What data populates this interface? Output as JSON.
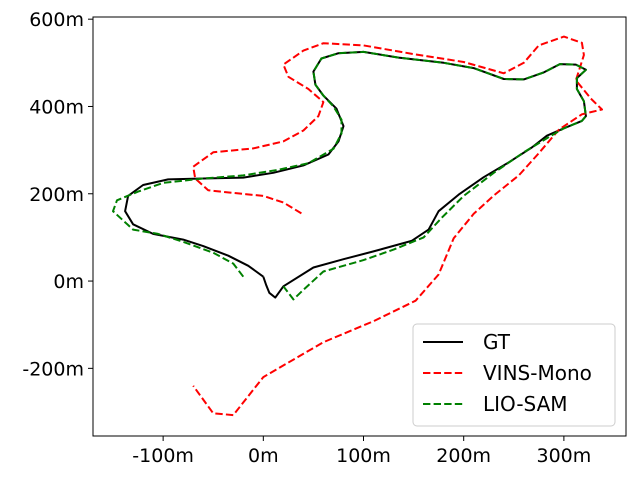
{
  "chart_data": {
    "type": "line",
    "title": "",
    "xlabel": "",
    "ylabel": "",
    "xlim": [
      -170,
      362
    ],
    "ylim": [
      -355,
      605
    ],
    "x_ticks": [
      {
        "value": -100,
        "label": "-100m"
      },
      {
        "value": 0,
        "label": "0m"
      },
      {
        "value": 100,
        "label": "100m"
      },
      {
        "value": 200,
        "label": "200m"
      },
      {
        "value": 300,
        "label": "300m"
      }
    ],
    "y_ticks": [
      {
        "value": -200,
        "label": "-200m"
      },
      {
        "value": 0,
        "label": "0m"
      },
      {
        "value": 200,
        "label": "200m"
      },
      {
        "value": 400,
        "label": "400m"
      },
      {
        "value": 600,
        "label": "600m"
      }
    ],
    "grid": false,
    "legend_position": "bottom-right",
    "series": [
      {
        "name": "GT",
        "color": "#000000",
        "style": "solid",
        "points": [
          [
            0,
            10
          ],
          [
            -15,
            35
          ],
          [
            -35,
            58
          ],
          [
            -60,
            80
          ],
          [
            -80,
            95
          ],
          [
            -110,
            108
          ],
          [
            -130,
            130
          ],
          [
            -138,
            160
          ],
          [
            -135,
            195
          ],
          [
            -120,
            220
          ],
          [
            -95,
            233
          ],
          [
            -60,
            235
          ],
          [
            -20,
            237
          ],
          [
            10,
            248
          ],
          [
            40,
            265
          ],
          [
            65,
            290
          ],
          [
            75,
            320
          ],
          [
            80,
            355
          ],
          [
            73,
            395
          ],
          [
            60,
            425
          ],
          [
            52,
            450
          ],
          [
            50,
            480
          ],
          [
            58,
            510
          ],
          [
            75,
            522
          ],
          [
            100,
            525
          ],
          [
            135,
            512
          ],
          [
            180,
            500
          ],
          [
            210,
            488
          ],
          [
            240,
            463
          ],
          [
            260,
            462
          ],
          [
            280,
            478
          ],
          [
            296,
            497
          ],
          [
            312,
            496
          ],
          [
            322,
            484
          ],
          [
            313,
            465
          ],
          [
            313,
            440
          ],
          [
            320,
            412
          ],
          [
            322,
            378
          ],
          [
            318,
            367
          ],
          [
            300,
            350
          ],
          [
            283,
            333
          ],
          [
            268,
            306
          ],
          [
            245,
            272
          ],
          [
            220,
            238
          ],
          [
            195,
            198
          ],
          [
            175,
            160
          ],
          [
            165,
            118
          ],
          [
            148,
            92
          ],
          [
            110,
            68
          ],
          [
            80,
            50
          ],
          [
            50,
            31
          ],
          [
            20,
            -12
          ],
          [
            12,
            -38
          ],
          [
            6,
            -27
          ],
          [
            3,
            -10
          ],
          [
            0,
            10
          ]
        ]
      },
      {
        "name": "VINS-Mono",
        "color": "#ff0000",
        "style": "dashed",
        "points": [
          [
            38,
            155
          ],
          [
            20,
            180
          ],
          [
            0,
            195
          ],
          [
            -30,
            202
          ],
          [
            -55,
            208
          ],
          [
            -68,
            235
          ],
          [
            -70,
            262
          ],
          [
            -50,
            295
          ],
          [
            -10,
            304
          ],
          [
            20,
            320
          ],
          [
            40,
            345
          ],
          [
            55,
            378
          ],
          [
            60,
            410
          ],
          [
            45,
            440
          ],
          [
            25,
            468
          ],
          [
            20,
            496
          ],
          [
            40,
            528
          ],
          [
            60,
            545
          ],
          [
            100,
            540
          ],
          [
            150,
            520
          ],
          [
            200,
            502
          ],
          [
            240,
            476
          ],
          [
            260,
            500
          ],
          [
            275,
            540
          ],
          [
            300,
            560
          ],
          [
            318,
            546
          ],
          [
            320,
            518
          ],
          [
            312,
            460
          ],
          [
            327,
            418
          ],
          [
            338,
            393
          ],
          [
            318,
            382
          ],
          [
            295,
            347
          ],
          [
            275,
            293
          ],
          [
            255,
            242
          ],
          [
            230,
            196
          ],
          [
            210,
            154
          ],
          [
            190,
            98
          ],
          [
            175,
            15
          ],
          [
            152,
            -45
          ],
          [
            110,
            -92
          ],
          [
            60,
            -140
          ],
          [
            0,
            -220
          ],
          [
            -30,
            -307
          ],
          [
            -50,
            -303
          ],
          [
            -70,
            -240
          ]
        ]
      },
      {
        "name": "LIO-SAM",
        "color": "#008000",
        "style": "dashed",
        "points": [
          [
            -20,
            10
          ],
          [
            -30,
            40
          ],
          [
            -50,
            65
          ],
          [
            -80,
            90
          ],
          [
            -105,
            108
          ],
          [
            -130,
            118
          ],
          [
            -150,
            160
          ],
          [
            -146,
            185
          ],
          [
            -125,
            205
          ],
          [
            -100,
            225
          ],
          [
            -60,
            235
          ],
          [
            -20,
            242
          ],
          [
            15,
            255
          ],
          [
            45,
            270
          ],
          [
            70,
            303
          ],
          [
            78,
            338
          ],
          [
            78,
            370
          ],
          [
            70,
            400
          ],
          [
            60,
            425
          ],
          [
            52,
            450
          ],
          [
            50,
            480
          ],
          [
            58,
            510
          ],
          [
            75,
            522
          ],
          [
            100,
            525
          ],
          [
            135,
            512
          ],
          [
            180,
            500
          ],
          [
            210,
            488
          ],
          [
            240,
            463
          ],
          [
            260,
            462
          ],
          [
            280,
            478
          ],
          [
            296,
            497
          ],
          [
            312,
            496
          ],
          [
            322,
            484
          ],
          [
            313,
            465
          ],
          [
            313,
            440
          ],
          [
            320,
            412
          ],
          [
            322,
            378
          ],
          [
            318,
            367
          ],
          [
            300,
            350
          ],
          [
            285,
            330
          ],
          [
            260,
            295
          ],
          [
            230,
            248
          ],
          [
            200,
            195
          ],
          [
            178,
            145
          ],
          [
            160,
            100
          ],
          [
            130,
            72
          ],
          [
            100,
            48
          ],
          [
            60,
            22
          ],
          [
            40,
            -20
          ],
          [
            30,
            -42
          ],
          [
            20,
            -12
          ]
        ]
      }
    ]
  }
}
